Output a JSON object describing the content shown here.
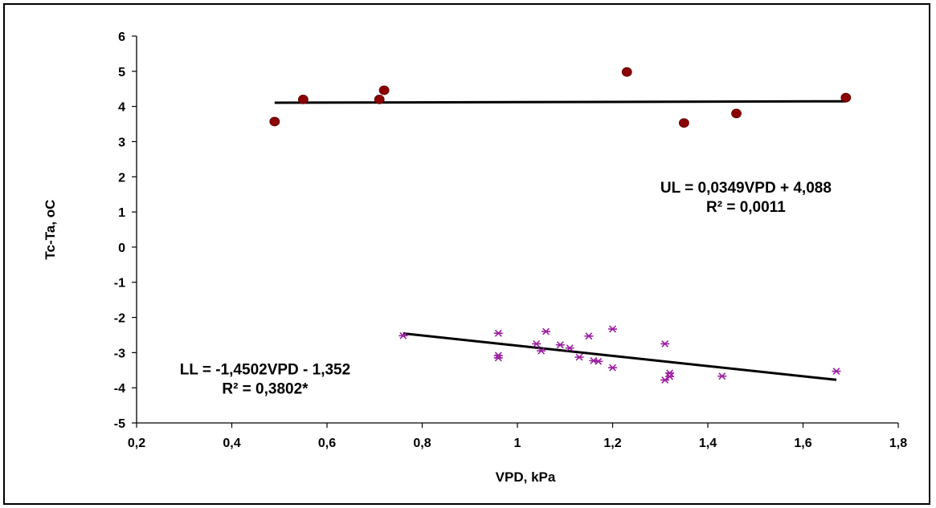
{
  "chart_data": {
    "type": "scatter",
    "title": "",
    "xlabel": "VPD, kPa",
    "ylabel": "Tc-Ta, oC",
    "xlim": [
      0.2,
      1.8
    ],
    "ylim": [
      -5,
      6
    ],
    "x_ticks": [
      "0,2",
      "0,4",
      "0,6",
      "0,8",
      "1",
      "1,2",
      "1,4",
      "1,6",
      "1,8"
    ],
    "y_ticks": [
      "-5",
      "-4",
      "-3",
      "-2",
      "-1",
      "0",
      "1",
      "2",
      "3",
      "4",
      "5",
      "6"
    ],
    "grid": false,
    "legend": "none",
    "series": [
      {
        "marker": "circle",
        "color": "#8B0000",
        "points": [
          [
            0.49,
            3.57
          ],
          [
            0.55,
            4.2
          ],
          [
            0.71,
            4.2
          ],
          [
            0.72,
            4.46
          ],
          [
            1.23,
            4.98
          ],
          [
            1.35,
            3.53
          ],
          [
            1.46,
            3.8
          ],
          [
            1.69,
            4.25
          ]
        ],
        "trendline": {
          "slope": 0.0349,
          "intercept": 4.088,
          "x_range": [
            0.49,
            1.69
          ]
        }
      },
      {
        "marker": "asterisk",
        "color": "#9B1FA0",
        "points": [
          [
            0.76,
            -2.52
          ],
          [
            0.96,
            -2.45
          ],
          [
            0.96,
            -3.08
          ],
          [
            0.96,
            -3.15
          ],
          [
            1.04,
            -2.75
          ],
          [
            1.05,
            -2.95
          ],
          [
            1.06,
            -2.4
          ],
          [
            1.09,
            -2.78
          ],
          [
            1.11,
            -2.87
          ],
          [
            1.13,
            -3.13
          ],
          [
            1.15,
            -2.53
          ],
          [
            1.16,
            -3.23
          ],
          [
            1.17,
            -3.25
          ],
          [
            1.2,
            -2.33
          ],
          [
            1.2,
            -3.43
          ],
          [
            1.31,
            -2.75
          ],
          [
            1.31,
            -3.78
          ],
          [
            1.32,
            -3.58
          ],
          [
            1.32,
            -3.68
          ],
          [
            1.43,
            -3.67
          ],
          [
            1.67,
            -3.53
          ]
        ],
        "trendline": {
          "slope": -1.4502,
          "intercept": -1.352,
          "x_range": [
            0.76,
            1.67
          ]
        }
      }
    ],
    "annotations": [
      {
        "lines": [
          "UL = 0,0349VPD + 4,088",
          "R² = 0,0011"
        ],
        "anchor_x": 1.48,
        "anchor_y": 1.55
      },
      {
        "lines": [
          "LL = -1,4502VPD - 1,352",
          "R² = 0,3802*"
        ],
        "anchor_x": 0.47,
        "anchor_y": -3.62
      }
    ]
  }
}
